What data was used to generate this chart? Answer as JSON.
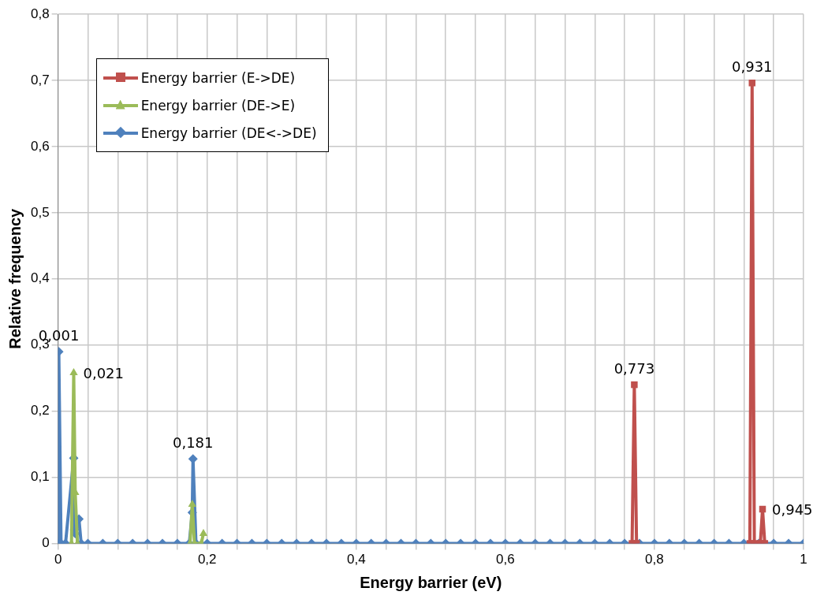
{
  "chart_data": {
    "type": "line",
    "xlabel": "Energy barrier (eV)",
    "ylabel": "Relative frequency",
    "xlim": [
      0,
      1
    ],
    "xticks": [
      {
        "value": 0,
        "label": "0"
      },
      {
        "value": 0.04,
        "label": null
      },
      {
        "value": 0.08,
        "label": null
      },
      {
        "value": 0.12,
        "label": null
      },
      {
        "value": 0.16,
        "label": null
      },
      {
        "value": 0.2,
        "label": "0,2"
      },
      {
        "value": 0.24,
        "label": null
      },
      {
        "value": 0.28,
        "label": null
      },
      {
        "value": 0.32,
        "label": null
      },
      {
        "value": 0.36,
        "label": null
      },
      {
        "value": 0.4,
        "label": "0,4"
      },
      {
        "value": 0.44,
        "label": null
      },
      {
        "value": 0.48,
        "label": null
      },
      {
        "value": 0.52,
        "label": null
      },
      {
        "value": 0.56,
        "label": null
      },
      {
        "value": 0.6,
        "label": "0,6"
      },
      {
        "value": 0.64,
        "label": null
      },
      {
        "value": 0.68,
        "label": null
      },
      {
        "value": 0.72,
        "label": null
      },
      {
        "value": 0.76,
        "label": null
      },
      {
        "value": 0.8,
        "label": "0,8"
      },
      {
        "value": 0.84,
        "label": null
      },
      {
        "value": 0.88,
        "label": null
      },
      {
        "value": 0.92,
        "label": null
      },
      {
        "value": 0.96,
        "label": null
      },
      {
        "value": 1,
        "label": "1"
      }
    ],
    "ylim": [
      0,
      0.8
    ],
    "yticks": [
      {
        "value": 0,
        "label": "0"
      },
      {
        "value": 0.1,
        "label": "0,1"
      },
      {
        "value": 0.2,
        "label": "0,2"
      },
      {
        "value": 0.3,
        "label": "0,3"
      },
      {
        "value": 0.4,
        "label": "0,4"
      },
      {
        "value": 0.5,
        "label": "0,5"
      },
      {
        "value": 0.6,
        "label": "0,6"
      },
      {
        "value": 0.7,
        "label": "0,7"
      },
      {
        "value": 0.8,
        "label": "0,8"
      }
    ],
    "grid": true,
    "legend": "top left",
    "series": [
      {
        "name": "Energy barrier (E->DE)",
        "color": "#c0504d",
        "marker": "square",
        "x": [
          0.77,
          0.773,
          0.776,
          0.85,
          0.928,
          0.931,
          0.934,
          0.942,
          0.945,
          0.948
        ],
        "values": [
          0,
          0.24,
          0,
          null,
          0,
          0.696,
          0,
          0,
          0.052,
          0
        ]
      },
      {
        "name": "Energy barrier (DE->E)",
        "color": "#9bbb59",
        "marker": "triangle",
        "x": [
          0.018,
          0.021,
          0.023,
          0.026,
          0.1,
          0.177,
          0.18,
          0.183,
          0.192,
          0.195
        ],
        "values": [
          0,
          0.258,
          0.077,
          0,
          null,
          0,
          0.059,
          0,
          0,
          0.015
        ]
      },
      {
        "name": "Energy barrier (DE<->DE)",
        "color": "#4f81bd",
        "marker": "diamond",
        "x": [
          0,
          0.001,
          0.004,
          0.01,
          0.021,
          0.022,
          0.023,
          0.028,
          0.031,
          0.04,
          0.06,
          0.08,
          0.1,
          0.12,
          0.14,
          0.16,
          0.176,
          0.18,
          0.181,
          0.185,
          0.2,
          0.22,
          0.24,
          0.26,
          0.28,
          0.3,
          0.32,
          0.34,
          0.36,
          0.38,
          0.4,
          0.42,
          0.44,
          0.46,
          0.48,
          0.5,
          0.52,
          0.54,
          0.56,
          0.58,
          0.6,
          0.62,
          0.64,
          0.66,
          0.68,
          0.7,
          0.72,
          0.74,
          0.76,
          0.78,
          0.8,
          0.82,
          0.84,
          0.86,
          0.88,
          0.9,
          0.92,
          0.94,
          0.96,
          0.98,
          1
        ],
        "values": [
          0,
          0.29,
          0,
          0,
          0.129,
          0.021,
          0.015,
          0.037,
          0,
          0,
          0,
          0,
          0,
          0,
          0,
          0,
          0,
          0.047,
          0.128,
          0,
          0,
          0,
          0,
          0,
          0,
          0,
          0,
          0,
          0,
          0,
          0,
          0,
          0,
          0,
          0,
          0,
          0,
          0,
          0,
          0,
          0,
          0,
          0,
          0,
          0,
          0,
          0,
          0,
          0,
          0,
          0,
          0,
          0,
          0,
          0,
          0,
          0,
          0,
          0,
          0,
          0
        ]
      }
    ],
    "annotations": [
      {
        "text": "0,001",
        "x": 0.001,
        "y": 0.29
      },
      {
        "text": "0,021",
        "x": 0.021,
        "y": 0.258
      },
      {
        "text": "0,181",
        "x": 0.181,
        "y": 0.128
      },
      {
        "text": "0,773",
        "x": 0.773,
        "y": 0.24
      },
      {
        "text": "0,931",
        "x": 0.931,
        "y": 0.696
      },
      {
        "text": "0,945",
        "x": 0.945,
        "y": 0.052
      }
    ]
  }
}
